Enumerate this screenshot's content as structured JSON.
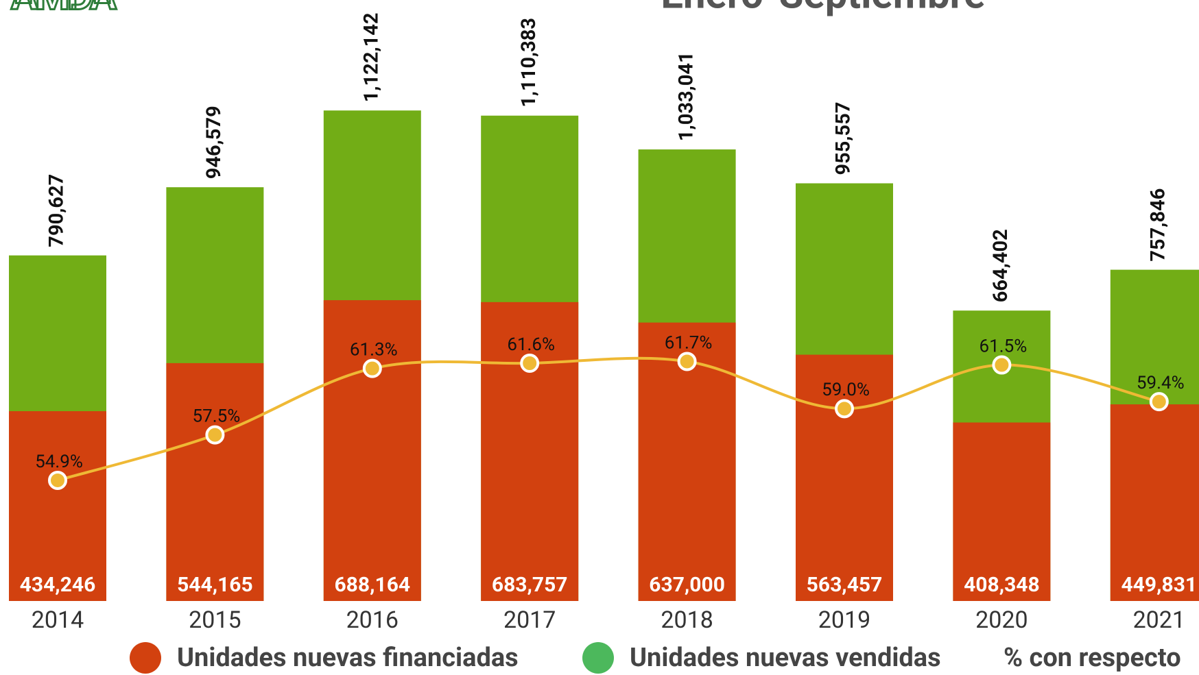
{
  "chart_data": {
    "type": "bar",
    "title": "Enero-Septiembre",
    "logo": "AMDA",
    "categories": [
      "2014",
      "2015",
      "2016",
      "2017",
      "2018",
      "2019",
      "2020",
      "2021"
    ],
    "ylim": [
      0,
      1400000
    ],
    "y2lim": [
      48,
      83
    ],
    "series": [
      {
        "name": "Unidades nuevas vendidas",
        "color": "#72ad16",
        "values": [
          790627,
          946579,
          1122142,
          1110383,
          1033041,
          955557,
          664402,
          757846
        ],
        "value_labels": [
          "790,627",
          "946,579",
          "1,122,142",
          "1,110,383",
          "1,033,041",
          "955,557",
          "664,402",
          "757,846"
        ]
      },
      {
        "name": "Unidades nuevas financiadas",
        "color": "#d2410f",
        "values": [
          434246,
          544165,
          688164,
          683757,
          637000,
          563457,
          408348,
          449831
        ],
        "value_labels": [
          "434,246",
          "544,165",
          "688,164",
          "683,757",
          "637,000",
          "563,457",
          "408,348",
          "449,831"
        ]
      },
      {
        "name": "% con respecto",
        "color": "#efb935",
        "type": "line",
        "axis": "y2",
        "values": [
          54.9,
          57.5,
          61.3,
          61.6,
          61.7,
          59.0,
          61.5,
          59.4
        ],
        "value_labels": [
          "54.9%",
          "57.5%",
          "61.3%",
          "61.6%",
          "61.7%",
          "59.0%",
          "61.5%",
          "59.4%"
        ]
      }
    ],
    "legend_order": [
      1,
      0,
      2
    ]
  }
}
